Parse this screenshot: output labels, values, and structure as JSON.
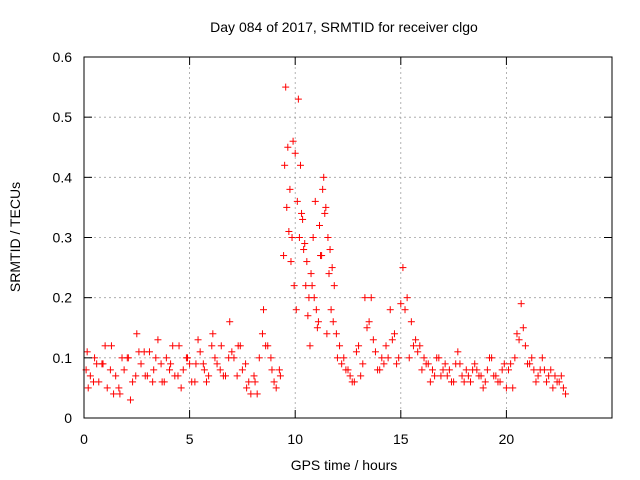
{
  "chart_data": {
    "type": "scatter",
    "title": "Day 084 of 2017, SRMTID for receiver clgo",
    "xlabel": "GPS time / hours",
    "ylabel": "SRMTID / TECUs",
    "xlim": [
      0,
      25
    ],
    "ylim": [
      0,
      0.6
    ],
    "xticks": [
      0,
      5,
      10,
      15,
      20
    ],
    "yticks": [
      0,
      0.1,
      0.2,
      0.3,
      0.4,
      0.5,
      0.6
    ],
    "grid": true,
    "marker": "+",
    "series_color": "#ff0000",
    "series": [
      {
        "name": "SRMTID",
        "x": [
          0.1,
          0.3,
          0.5,
          0.7,
          0.9,
          1.1,
          1.3,
          1.5,
          1.7,
          1.9,
          2.1,
          2.3,
          2.5,
          2.7,
          2.9,
          3.1,
          3.3,
          3.5,
          3.7,
          3.9,
          4.1,
          4.3,
          4.5,
          4.7,
          4.9,
          5.1,
          5.3,
          5.5,
          5.7,
          5.9,
          6.1,
          6.3,
          6.5,
          6.7,
          6.9,
          7.1,
          7.3,
          7.5,
          7.7,
          7.9,
          8.1,
          8.3,
          8.5,
          8.7,
          8.9,
          9.1,
          9.3,
          9.45,
          9.55,
          9.65,
          9.75,
          9.85,
          9.95,
          10.05,
          10.15,
          10.25,
          10.35,
          10.45,
          10.55,
          10.65,
          10.75,
          10.85,
          10.95,
          11.05,
          11.15,
          11.25,
          11.35,
          11.45,
          11.55,
          11.65,
          11.75,
          11.85,
          11.95,
          12.1,
          12.3,
          12.5,
          12.7,
          12.9,
          13.1,
          13.3,
          13.5,
          13.7,
          13.9,
          14.1,
          14.3,
          14.5,
          14.7,
          14.9,
          15.1,
          15.3,
          15.5,
          15.7,
          15.9,
          16.1,
          16.3,
          16.5,
          16.7,
          16.9,
          17.1,
          17.3,
          17.5,
          17.7,
          17.9,
          18.1,
          18.3,
          18.5,
          18.7,
          18.9,
          19.1,
          19.3,
          19.5,
          19.7,
          19.9,
          20.1,
          20.3,
          20.5,
          20.7,
          20.9,
          21.1,
          21.3,
          21.5,
          21.7,
          21.9,
          22.1,
          22.3,
          22.5,
          22.7,
          0.2,
          0.6,
          1.0,
          1.4,
          1.8,
          2.2,
          2.6,
          3.0,
          3.4,
          3.8,
          4.2,
          4.6,
          5.0,
          5.4,
          5.8,
          6.2,
          6.6,
          7.0,
          7.4,
          7.8,
          8.2,
          8.6,
          9.0,
          9.5,
          9.7,
          9.9,
          10.1,
          10.3,
          10.5,
          10.7,
          10.9,
          11.1,
          11.3,
          11.5,
          11.7,
          12.0,
          12.4,
          12.8,
          13.2,
          13.6,
          14.0,
          14.4,
          14.8,
          15.2,
          15.6,
          16.0,
          16.4,
          16.8,
          17.2,
          17.6,
          18.0,
          18.4,
          18.8,
          19.2,
          19.6,
          20.0,
          20.4,
          20.8,
          21.2,
          21.6,
          22.0,
          22.4,
          22.8,
          0.15,
          0.45,
          0.85,
          1.25,
          1.65,
          2.05,
          2.45,
          2.85,
          3.25,
          3.65,
          4.05,
          4.45,
          4.85,
          5.25,
          5.65,
          6.05,
          6.45,
          6.85,
          7.25,
          7.65,
          8.05,
          8.45,
          8.85,
          9.25,
          9.6,
          9.8,
          10.0,
          10.2,
          10.4,
          10.6,
          10.8,
          11.0,
          11.2,
          11.4,
          11.6,
          11.8,
          12.2,
          12.6,
          13.0,
          13.4,
          13.8,
          14.2,
          14.6,
          15.0,
          15.4,
          15.8,
          16.2,
          16.6,
          17.0,
          17.4,
          17.8,
          18.2,
          18.6,
          19.0,
          19.4,
          19.8,
          20.2,
          20.6,
          21.0,
          21.4,
          21.8,
          22.2,
          22.6
        ],
        "y": [
          0.08,
          0.07,
          0.1,
          0.06,
          0.09,
          0.05,
          0.12,
          0.07,
          0.04,
          0.08,
          0.1,
          0.06,
          0.14,
          0.09,
          0.07,
          0.11,
          0.08,
          0.13,
          0.06,
          0.1,
          0.09,
          0.07,
          0.12,
          0.08,
          0.1,
          0.06,
          0.09,
          0.11,
          0.08,
          0.07,
          0.14,
          0.09,
          0.12,
          0.07,
          0.16,
          0.1,
          0.12,
          0.08,
          0.05,
          0.04,
          0.06,
          0.1,
          0.18,
          0.12,
          0.08,
          0.05,
          0.07,
          0.27,
          0.55,
          0.45,
          0.38,
          0.3,
          0.22,
          0.18,
          0.53,
          0.42,
          0.33,
          0.29,
          0.26,
          0.2,
          0.24,
          0.3,
          0.36,
          0.15,
          0.32,
          0.27,
          0.4,
          0.35,
          0.3,
          0.28,
          0.25,
          0.22,
          0.14,
          0.12,
          0.1,
          0.08,
          0.06,
          0.11,
          0.07,
          0.2,
          0.16,
          0.13,
          0.08,
          0.1,
          0.12,
          0.18,
          0.14,
          0.1,
          0.25,
          0.2,
          0.16,
          0.13,
          0.12,
          0.1,
          0.09,
          0.08,
          0.1,
          0.07,
          0.09,
          0.08,
          0.06,
          0.11,
          0.07,
          0.08,
          0.06,
          0.09,
          0.07,
          0.05,
          0.08,
          0.1,
          0.07,
          0.06,
          0.09,
          0.08,
          0.05,
          0.14,
          0.19,
          0.12,
          0.09,
          0.08,
          0.07,
          0.1,
          0.06,
          0.08,
          0.07,
          0.06,
          0.05,
          0.05,
          0.09,
          0.12,
          0.04,
          0.1,
          0.03,
          0.11,
          0.07,
          0.1,
          0.06,
          0.12,
          0.05,
          0.09,
          0.13,
          0.06,
          0.1,
          0.07,
          0.11,
          0.12,
          0.06,
          0.04,
          0.12,
          0.06,
          0.42,
          0.31,
          0.46,
          0.36,
          0.34,
          0.22,
          0.12,
          0.2,
          0.16,
          0.38,
          0.14,
          0.18,
          0.1,
          0.08,
          0.06,
          0.09,
          0.2,
          0.08,
          0.1,
          0.09,
          0.18,
          0.12,
          0.08,
          0.06,
          0.1,
          0.07,
          0.09,
          0.06,
          0.08,
          0.07,
          0.1,
          0.06,
          0.05,
          0.1,
          0.15,
          0.1,
          0.08,
          0.07,
          0.06,
          0.04,
          0.11,
          0.06,
          0.09,
          0.08,
          0.05,
          0.1,
          0.07,
          0.11,
          0.06,
          0.09,
          0.08,
          0.07,
          0.1,
          0.06,
          0.09,
          0.12,
          0.08,
          0.1,
          0.07,
          0.09,
          0.07,
          0.14,
          0.1,
          0.08,
          0.35,
          0.26,
          0.44,
          0.3,
          0.28,
          0.17,
          0.22,
          0.18,
          0.27,
          0.34,
          0.24,
          0.16,
          0.09,
          0.07,
          0.12,
          0.15,
          0.11,
          0.09,
          0.13,
          0.19,
          0.1,
          0.11,
          0.09,
          0.07,
          0.08,
          0.06,
          0.09,
          0.07,
          0.08,
          0.06,
          0.07,
          0.08,
          0.09,
          0.13,
          0.09,
          0.06,
          0.08,
          0.05,
          0.07
        ]
      }
    ]
  }
}
